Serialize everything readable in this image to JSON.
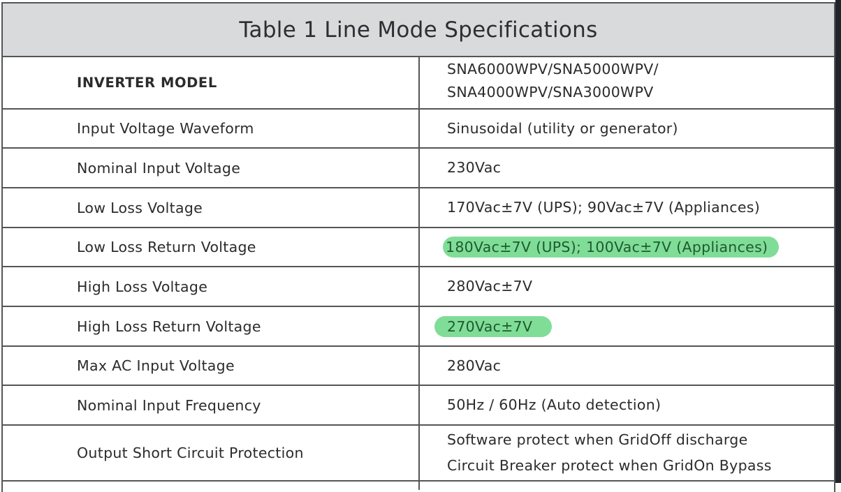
{
  "title": "Table 1 Line Mode Specifications",
  "highlight_color": "#80dd97",
  "rows": [
    {
      "label": "INVERTER MODEL",
      "value": [
        "SNA6000WPV/SNA5000WPV/",
        "SNA4000WPV/SNA3000WPV"
      ]
    },
    {
      "label": "Input Voltage Waveform",
      "value": [
        "Sinusoidal (utility or generator)"
      ]
    },
    {
      "label": "Nominal Input Voltage",
      "value": [
        "230Vac"
      ]
    },
    {
      "label": "Low Loss Voltage",
      "value": [
        "170Vac±7V (UPS); 90Vac±7V (Appliances)"
      ]
    },
    {
      "label": "Low Loss Return Voltage",
      "value": [
        "180Vac±7V (UPS); 100Vac±7V (Appliances)"
      ],
      "highlighted": true
    },
    {
      "label": "High Loss Voltage",
      "value": [
        "280Vac±7V"
      ]
    },
    {
      "label": "High Loss Return Voltage",
      "value": [
        "270Vac±7V"
      ],
      "highlighted": true
    },
    {
      "label": "Max AC Input Voltage",
      "value": [
        "280Vac"
      ]
    },
    {
      "label": "Nominal Input Frequency",
      "value": [
        "50Hz / 60Hz (Auto detection)"
      ]
    },
    {
      "label": "Output Short Circuit Protection",
      "value": [
        "Software protect when GridOff discharge",
        "Circuit Breaker protect when GridOn Bypass"
      ]
    }
  ]
}
